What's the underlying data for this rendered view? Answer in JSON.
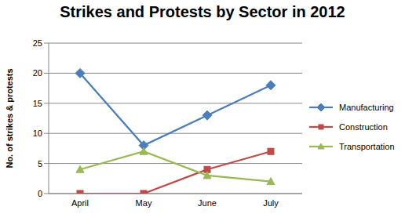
{
  "chart_data": {
    "type": "line",
    "title": "Strikes and Protests by Sector in 2012",
    "y_label": "No. of strikes & protests",
    "categories": [
      "April",
      "May",
      "June",
      "July"
    ],
    "series": [
      {
        "name": "Manufacturing",
        "color": "#4a7ebb",
        "marker": "diamond",
        "values": [
          20,
          8,
          13,
          18
        ]
      },
      {
        "name": "Construction",
        "color": "#be4b48",
        "marker": "square",
        "values": [
          0,
          0,
          4,
          7
        ]
      },
      {
        "name": "Transportation",
        "color": "#98b954",
        "marker": "triangle",
        "values": [
          4,
          7,
          3,
          2
        ]
      }
    ],
    "ylim": [
      0,
      25
    ],
    "yticks": [
      0,
      5,
      10,
      15,
      20,
      25
    ],
    "grid": true,
    "legend": "right"
  }
}
